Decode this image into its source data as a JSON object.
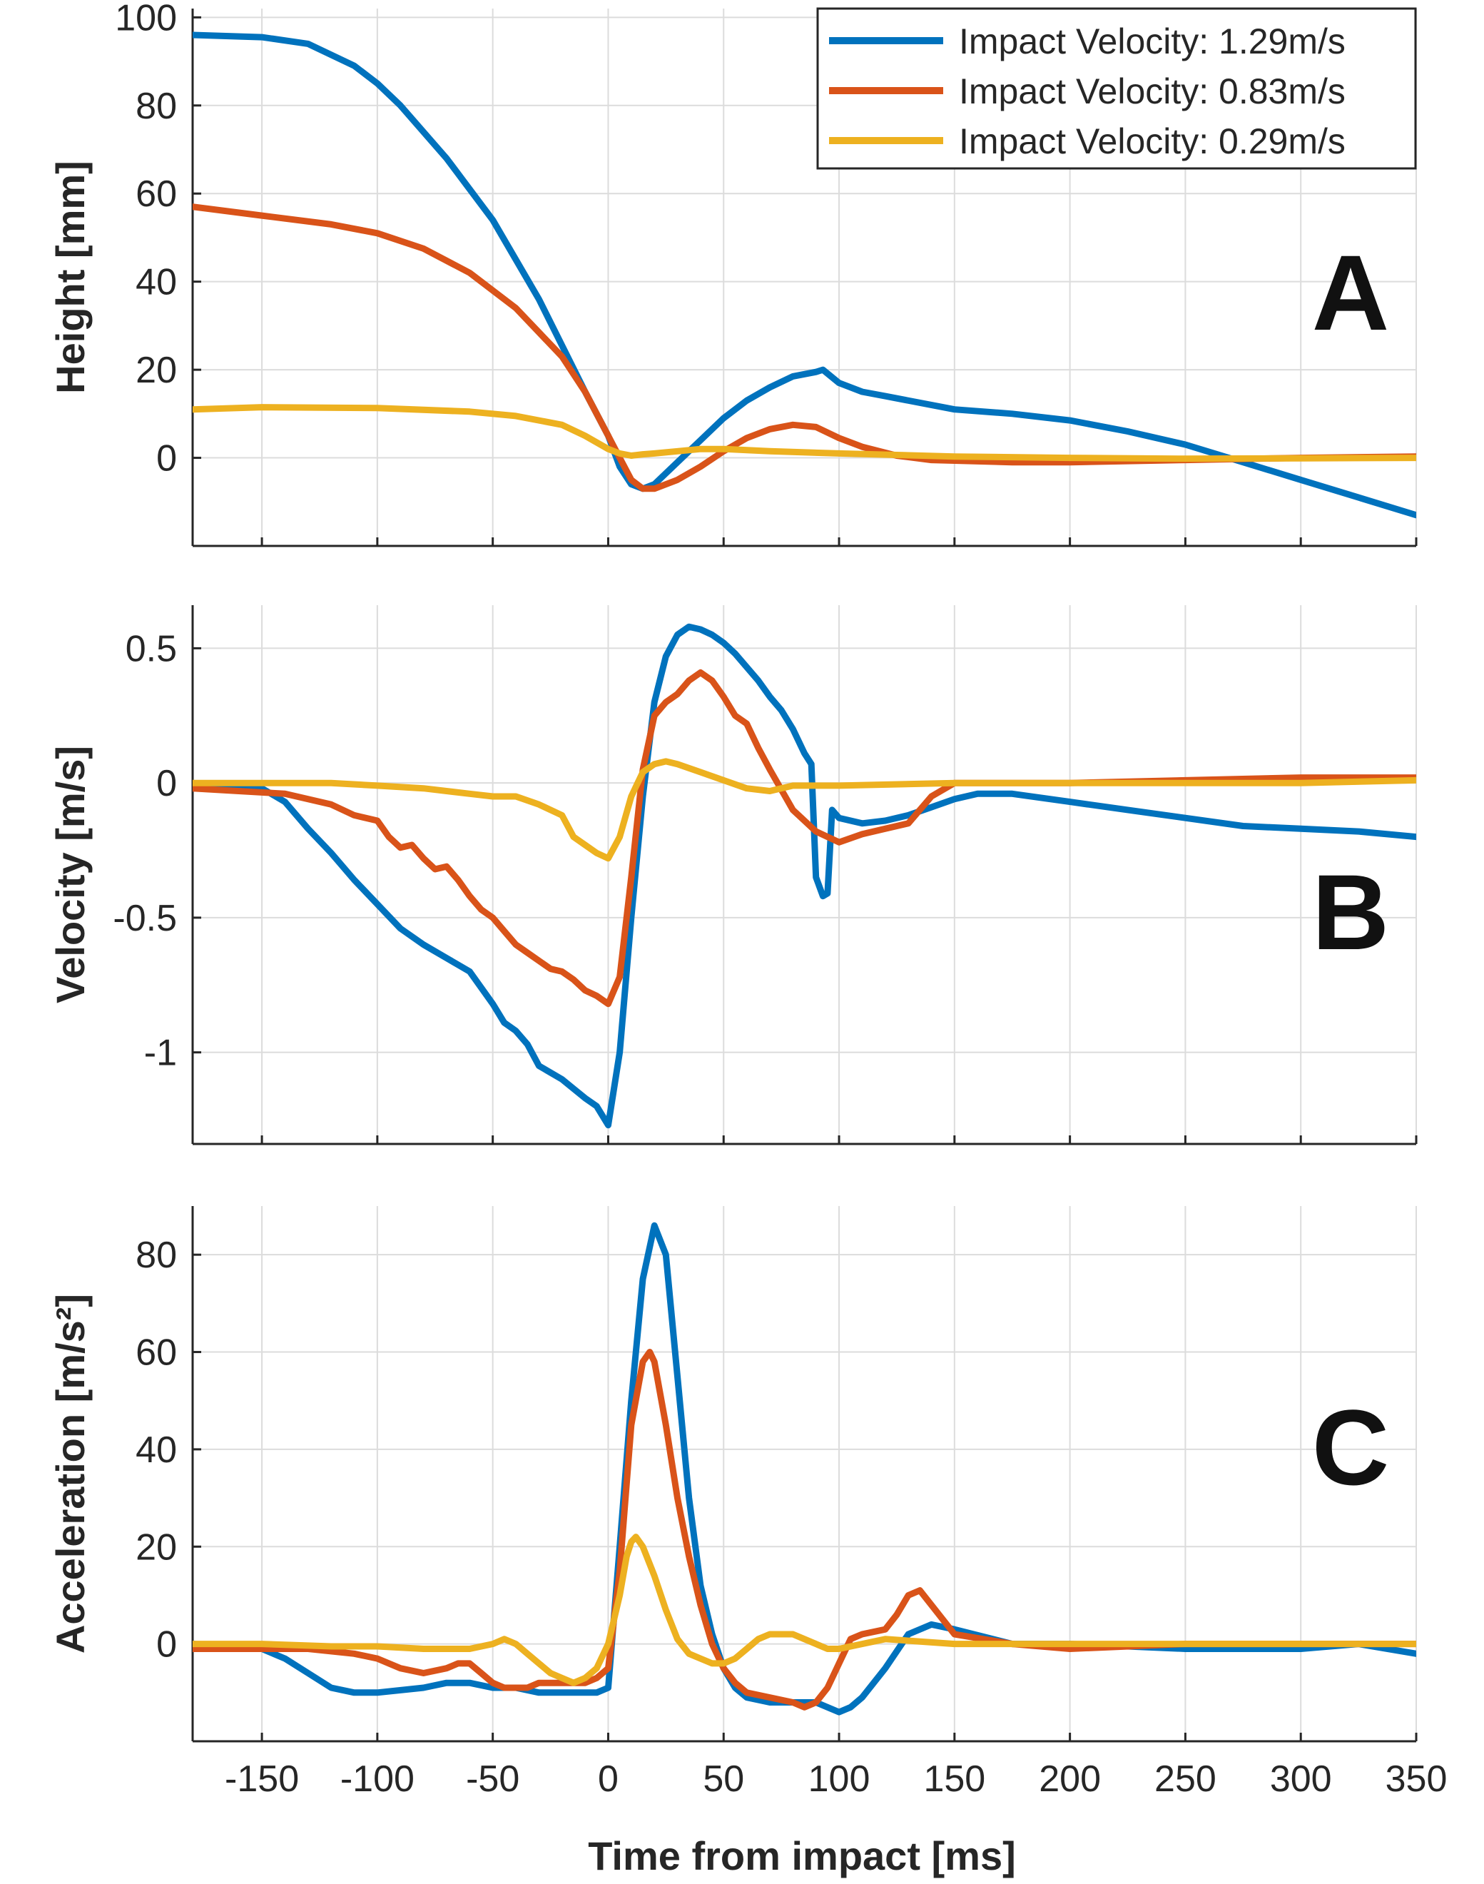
{
  "colors": {
    "s1": "#0072BD",
    "s2": "#D95319",
    "s3": "#EDB120"
  },
  "xlabel": "Time from impact [ms]",
  "xlim": [
    -180,
    350
  ],
  "xticks": [
    -150,
    -100,
    -50,
    0,
    50,
    100,
    150,
    200,
    250,
    300,
    350
  ],
  "legend": {
    "position": "top-right",
    "entries": [
      "Impact Velocity: 1.29m/s",
      "Impact Velocity: 0.83m/s",
      "Impact Velocity: 0.29m/s"
    ]
  },
  "chart_data": [
    {
      "type": "line",
      "panel": "A",
      "ylabel": "Height [mm]",
      "ylim": [
        -20,
        102
      ],
      "yticks": [
        0,
        20,
        40,
        60,
        80,
        100
      ],
      "series": [
        {
          "name": "Impact Velocity: 1.29m/s",
          "x": [
            -180,
            -150,
            -130,
            -110,
            -100,
            -90,
            -70,
            -50,
            -30,
            -10,
            0,
            5,
            10,
            15,
            20,
            30,
            40,
            50,
            60,
            70,
            80,
            90,
            93,
            100,
            110,
            120,
            150,
            175,
            200,
            225,
            250,
            275,
            300,
            325,
            350
          ],
          "y": [
            96,
            95.5,
            94,
            89,
            85,
            80,
            68,
            54,
            36,
            15,
            5,
            -2,
            -6,
            -7,
            -6,
            -1,
            4,
            9,
            13,
            16,
            18.5,
            19.5,
            20,
            17,
            15,
            14,
            11,
            10,
            8.5,
            6,
            3,
            -1,
            -5,
            -9,
            -13
          ]
        },
        {
          "name": "Impact Velocity: 0.83m/s",
          "x": [
            -180,
            -150,
            -120,
            -100,
            -80,
            -60,
            -40,
            -20,
            -10,
            0,
            5,
            10,
            15,
            20,
            30,
            40,
            50,
            60,
            70,
            80,
            90,
            100,
            110,
            125,
            140,
            175,
            200,
            250,
            300,
            350
          ],
          "y": [
            57,
            55,
            53,
            51,
            47.5,
            42,
            34,
            23,
            15,
            5,
            0,
            -5,
            -7,
            -7,
            -5,
            -2,
            1.5,
            4.5,
            6.5,
            7.5,
            7,
            4.5,
            2.5,
            0.5,
            -0.5,
            -1,
            -1,
            -0.5,
            0,
            0.3
          ]
        },
        {
          "name": "Impact Velocity: 0.29m/s",
          "x": [
            -180,
            -150,
            -100,
            -60,
            -40,
            -20,
            -10,
            0,
            5,
            10,
            15,
            20,
            30,
            40,
            50,
            70,
            100,
            150,
            200,
            250,
            300,
            350
          ],
          "y": [
            11,
            11.5,
            11.3,
            10.5,
            9.5,
            7.5,
            5,
            2,
            1,
            0.5,
            0.8,
            1,
            1.5,
            2,
            2,
            1.5,
            1,
            0.3,
            0,
            -0.2,
            -0.1,
            0
          ]
        }
      ]
    },
    {
      "type": "line",
      "panel": "B",
      "ylabel": "Velocity [m/s]",
      "ylim": [
        -1.34,
        0.66
      ],
      "yticks": [
        -1,
        -0.5,
        0,
        0.5
      ],
      "yticklabels": [
        "-1",
        "-0.5",
        "0",
        "0.5"
      ],
      "series": [
        {
          "name": "Impact Velocity: 1.29m/s",
          "x": [
            -180,
            -160,
            -150,
            -140,
            -130,
            -120,
            -110,
            -100,
            -90,
            -80,
            -70,
            -60,
            -50,
            -45,
            -40,
            -35,
            -30,
            -20,
            -10,
            -5,
            0,
            5,
            10,
            15,
            20,
            25,
            30,
            35,
            40,
            45,
            50,
            55,
            60,
            65,
            70,
            75,
            80,
            85,
            88,
            90,
            93,
            95,
            97,
            100,
            110,
            120,
            130,
            140,
            150,
            160,
            175,
            200,
            225,
            250,
            275,
            300,
            325,
            350
          ],
          "y": [
            -0.01,
            -0.01,
            -0.02,
            -0.07,
            -0.17,
            -0.26,
            -0.36,
            -0.45,
            -0.54,
            -0.6,
            -0.65,
            -0.7,
            -0.82,
            -0.89,
            -0.92,
            -0.97,
            -1.05,
            -1.1,
            -1.17,
            -1.2,
            -1.27,
            -1.0,
            -0.5,
            -0.05,
            0.3,
            0.47,
            0.55,
            0.58,
            0.57,
            0.55,
            0.52,
            0.48,
            0.43,
            0.38,
            0.32,
            0.27,
            0.2,
            0.11,
            0.07,
            -0.35,
            -0.42,
            -0.41,
            -0.1,
            -0.13,
            -0.15,
            -0.14,
            -0.12,
            -0.09,
            -0.06,
            -0.04,
            -0.04,
            -0.07,
            -0.1,
            -0.13,
            -0.16,
            -0.17,
            -0.18,
            -0.2
          ]
        },
        {
          "name": "Impact Velocity: 0.83m/s",
          "x": [
            -180,
            -160,
            -140,
            -120,
            -110,
            -100,
            -95,
            -90,
            -85,
            -80,
            -75,
            -70,
            -65,
            -60,
            -55,
            -50,
            -45,
            -40,
            -35,
            -30,
            -25,
            -20,
            -15,
            -10,
            -5,
            0,
            5,
            10,
            15,
            20,
            25,
            30,
            35,
            40,
            45,
            50,
            55,
            60,
            65,
            70,
            80,
            90,
            100,
            110,
            120,
            130,
            140,
            150,
            175,
            200,
            250,
            300,
            350
          ],
          "y": [
            -0.02,
            -0.03,
            -0.04,
            -0.08,
            -0.12,
            -0.14,
            -0.2,
            -0.24,
            -0.23,
            -0.28,
            -0.32,
            -0.31,
            -0.36,
            -0.42,
            -0.47,
            -0.5,
            -0.55,
            -0.6,
            -0.63,
            -0.66,
            -0.69,
            -0.7,
            -0.73,
            -0.77,
            -0.79,
            -0.82,
            -0.72,
            -0.35,
            0.05,
            0.25,
            0.3,
            0.33,
            0.38,
            0.41,
            0.38,
            0.32,
            0.25,
            0.22,
            0.13,
            0.05,
            -0.1,
            -0.18,
            -0.22,
            -0.19,
            -0.17,
            -0.15,
            -0.05,
            0.0,
            0.0,
            0.0,
            0.01,
            0.02,
            0.02
          ]
        },
        {
          "name": "Impact Velocity: 0.29m/s",
          "x": [
            -180,
            -150,
            -120,
            -100,
            -80,
            -60,
            -50,
            -40,
            -30,
            -20,
            -15,
            -10,
            -5,
            0,
            5,
            10,
            15,
            20,
            25,
            30,
            40,
            50,
            60,
            70,
            80,
            100,
            150,
            200,
            250,
            300,
            350
          ],
          "y": [
            0,
            0,
            0,
            -0.01,
            -0.02,
            -0.04,
            -0.05,
            -0.05,
            -0.08,
            -0.12,
            -0.2,
            -0.23,
            -0.26,
            -0.28,
            -0.2,
            -0.05,
            0.04,
            0.07,
            0.08,
            0.07,
            0.04,
            0.01,
            -0.02,
            -0.03,
            -0.01,
            -0.01,
            0,
            0,
            0,
            0,
            0.01
          ]
        }
      ]
    },
    {
      "type": "line",
      "panel": "C",
      "ylabel": "Acceleration [m/s²]",
      "ylim": [
        -20,
        90
      ],
      "yticks": [
        0,
        20,
        40,
        60,
        80
      ],
      "series": [
        {
          "name": "Impact Velocity: 1.29m/s",
          "x": [
            -180,
            -150,
            -140,
            -130,
            -120,
            -110,
            -100,
            -80,
            -70,
            -60,
            -50,
            -40,
            -30,
            -20,
            -10,
            -5,
            0,
            5,
            10,
            15,
            20,
            25,
            30,
            35,
            40,
            45,
            50,
            55,
            60,
            70,
            80,
            90,
            100,
            105,
            110,
            120,
            130,
            140,
            150,
            175,
            200,
            250,
            300,
            325,
            350
          ],
          "y": [
            0,
            -1,
            -3,
            -6,
            -9,
            -10,
            -10,
            -9,
            -8,
            -8,
            -9,
            -9,
            -10,
            -10,
            -10,
            -10,
            -9,
            20,
            50,
            75,
            86,
            80,
            55,
            30,
            12,
            2,
            -5,
            -9,
            -11,
            -12,
            -12,
            -12,
            -14,
            -13,
            -11,
            -5,
            2,
            4,
            3,
            0,
            0,
            -1,
            -1,
            0,
            -2
          ]
        },
        {
          "name": "Impact Velocity: 0.83m/s",
          "x": [
            -180,
            -150,
            -130,
            -110,
            -100,
            -90,
            -80,
            -70,
            -65,
            -60,
            -55,
            -50,
            -45,
            -40,
            -35,
            -30,
            -25,
            -20,
            -15,
            -10,
            -5,
            0,
            5,
            10,
            15,
            18,
            20,
            25,
            30,
            35,
            40,
            45,
            50,
            55,
            60,
            70,
            80,
            85,
            90,
            95,
            100,
            105,
            110,
            120,
            125,
            130,
            135,
            140,
            150,
            175,
            200,
            250,
            300,
            350
          ],
          "y": [
            -1,
            -1,
            -1,
            -2,
            -3,
            -5,
            -6,
            -5,
            -4,
            -4,
            -6,
            -8,
            -9,
            -9,
            -9,
            -8,
            -8,
            -8,
            -8,
            -8,
            -7,
            -5,
            15,
            45,
            58,
            60,
            58,
            45,
            30,
            18,
            8,
            0,
            -5,
            -8,
            -10,
            -11,
            -12,
            -13,
            -12,
            -9,
            -4,
            1,
            2,
            3,
            6,
            10,
            11,
            8,
            2,
            0,
            -1,
            0,
            0,
            0
          ]
        },
        {
          "name": "Impact Velocity: 0.29m/s",
          "x": [
            -180,
            -150,
            -120,
            -100,
            -80,
            -70,
            -60,
            -50,
            -45,
            -40,
            -35,
            -30,
            -25,
            -20,
            -15,
            -10,
            -5,
            0,
            5,
            8,
            10,
            12,
            15,
            20,
            25,
            30,
            35,
            40,
            45,
            50,
            55,
            60,
            65,
            70,
            75,
            80,
            85,
            90,
            95,
            100,
            110,
            120,
            150,
            200,
            250,
            300,
            350
          ],
          "y": [
            0,
            0,
            -0.5,
            -0.5,
            -1,
            -1,
            -1,
            0,
            1,
            0,
            -2,
            -4,
            -6,
            -7,
            -8,
            -7,
            -5,
            0,
            10,
            18,
            21,
            22,
            20,
            14,
            7,
            1,
            -2,
            -3,
            -4,
            -4,
            -3,
            -1,
            1,
            2,
            2,
            2,
            1,
            0,
            -1,
            -1,
            0,
            1,
            0,
            0,
            0,
            0,
            0
          ]
        }
      ]
    }
  ]
}
